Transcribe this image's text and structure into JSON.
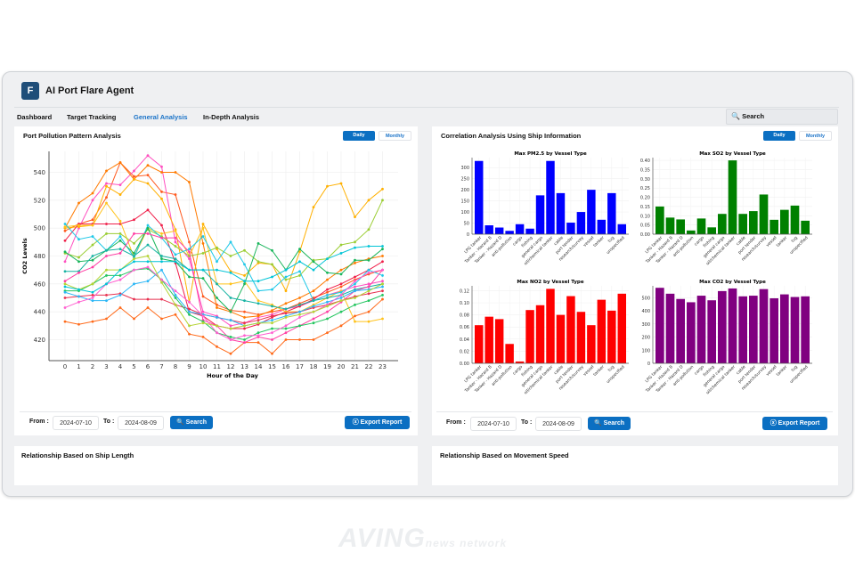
{
  "app": {
    "logo_letter": "F",
    "title": "AI Port Flare Agent"
  },
  "nav": [
    {
      "label": "Dashboard",
      "active": false
    },
    {
      "label": "Target Tracking",
      "active": false
    },
    {
      "label": "General Analysis",
      "active": true
    },
    {
      "label": "In-Depth Analysis",
      "active": false
    }
  ],
  "search": {
    "label": "Search",
    "icon": "search-icon"
  },
  "left_panel": {
    "title": "Port Pollution Pattern Analysis",
    "toggle": {
      "daily": "Daily",
      "monthly": "Monthly",
      "selected": "Daily"
    },
    "from_label": "From :",
    "from_value": "2024-07-10",
    "to_label": "To :",
    "to_value": "2024-08-09",
    "search_label": "Search",
    "export_label": "Export Report"
  },
  "right_panel": {
    "title": "Correlation Analysis Using Ship Information",
    "toggle": {
      "daily": "Daily",
      "monthly": "Monthly",
      "selected": "Daily"
    },
    "from_label": "From :",
    "from_value": "2024-07-10",
    "to_label": "To :",
    "to_value": "2024-08-09",
    "search_label": "Search",
    "export_label": "Export Report"
  },
  "bottom_left": {
    "title": "Relationship Based on Ship Length"
  },
  "bottom_right": {
    "title": "Relationship Based on Movement Speed"
  },
  "watermark": {
    "text": "AVING",
    "sub": "news network"
  },
  "colors": {
    "accent": "#0b6fc2",
    "logo": "#1f4e79",
    "pm25": "#0000ff",
    "so2": "#008000",
    "no2": "#ff0000",
    "co2": "#800080"
  },
  "chart_data": [
    {
      "type": "line",
      "title": "",
      "xlabel": "Hour of the Day",
      "ylabel": "CO2 Levels",
      "x": [
        0,
        1,
        2,
        3,
        4,
        5,
        6,
        7,
        8,
        9,
        10,
        11,
        12,
        13,
        14,
        15,
        16,
        17,
        18,
        19,
        20,
        21,
        22,
        23
      ],
      "yticks": [
        420,
        440,
        460,
        480,
        500,
        520,
        540
      ],
      "ylim": [
        405,
        555
      ],
      "grid": true,
      "markers": true,
      "series": [
        {
          "color": "#ff5a1f",
          "values": [
            498,
            503,
            506,
            522,
            547,
            537,
            538,
            526,
            524,
            490,
            451,
            445,
            441,
            440,
            438,
            440,
            442,
            446,
            450,
            454,
            458,
            463,
            467,
            470
          ]
        },
        {
          "color": "#ff4fc0",
          "values": [
            476,
            500,
            520,
            532,
            531,
            541,
            552,
            544,
            490,
            478,
            440,
            437,
            430,
            432,
            436,
            438,
            442,
            444,
            448,
            452,
            455,
            458,
            460,
            462
          ]
        },
        {
          "color": "#ff7a00",
          "values": [
            500,
            518,
            525,
            541,
            547,
            535,
            545,
            540,
            540,
            533,
            489,
            443,
            440,
            436,
            437,
            441,
            446,
            450,
            455,
            463,
            470,
            475,
            478,
            480
          ]
        },
        {
          "color": "#ffb000",
          "values": [
            500,
            501,
            502,
            530,
            524,
            535,
            532,
            521,
            499,
            447,
            503,
            485,
            469,
            466,
            475,
            474,
            455,
            483,
            515,
            530,
            532,
            508,
            520,
            528
          ]
        },
        {
          "color": "#f0204a",
          "values": [
            491,
            503,
            503,
            503,
            503,
            506,
            513,
            502,
            475,
            440,
            437,
            430,
            428,
            428,
            431,
            436,
            440,
            444,
            449,
            456,
            460,
            465,
            470,
            476
          ]
        },
        {
          "color": "#ffc21a",
          "values": [
            501,
            502,
            502,
            518,
            505,
            479,
            500,
            496,
            498,
            480,
            500,
            460,
            460,
            462,
            448,
            445,
            440,
            440,
            445,
            450,
            455,
            433,
            433,
            435
          ]
        },
        {
          "color": "#9acd32",
          "values": [
            482,
            479,
            488,
            496,
            496,
            489,
            499,
            494,
            487,
            480,
            482,
            486,
            480,
            484,
            476,
            474,
            463,
            466,
            477,
            478,
            488,
            490,
            499,
            520
          ]
        },
        {
          "color": "#1ec8e8",
          "values": [
            503,
            492,
            494,
            484,
            494,
            479,
            502,
            493,
            481,
            485,
            494,
            476,
            490,
            474,
            455,
            456,
            465,
            469,
            448,
            452,
            454,
            460,
            470,
            466
          ]
        },
        {
          "color": "#18b55a",
          "values": [
            483,
            476,
            477,
            484,
            491,
            482,
            500,
            478,
            476,
            465,
            464,
            450,
            440,
            460,
            489,
            484,
            470,
            485,
            476,
            468,
            467,
            477,
            477,
            485
          ]
        },
        {
          "color": "#ff6a1a",
          "values": [
            433,
            431,
            433,
            435,
            443,
            435,
            443,
            435,
            438,
            424,
            422,
            415,
            410,
            418,
            418,
            410,
            420,
            420,
            420,
            425,
            430,
            437,
            440,
            449
          ]
        },
        {
          "color": "#e8304f",
          "values": [
            450,
            451,
            452,
            452,
            453,
            449,
            449,
            449,
            445,
            442,
            438,
            436,
            434,
            432,
            434,
            437,
            439,
            440,
            443,
            445,
            448,
            451,
            453,
            455
          ]
        },
        {
          "color": "#17b3a3",
          "values": [
            469,
            469,
            480,
            484,
            485,
            480,
            488,
            480,
            478,
            470,
            470,
            460,
            450,
            448,
            446,
            444,
            442,
            445,
            448,
            450,
            452,
            456,
            458,
            460
          ]
        },
        {
          "color": "#ff3fa4",
          "values": [
            462,
            468,
            472,
            480,
            482,
            496,
            496,
            493,
            493,
            483,
            434,
            430,
            420,
            418,
            422,
            420,
            425,
            430,
            435,
            440,
            447,
            455,
            458,
            470
          ]
        },
        {
          "color": "#22c55e",
          "values": [
            455,
            455,
            460,
            466,
            466,
            470,
            471,
            463,
            450,
            438,
            433,
            425,
            422,
            420,
            425,
            428,
            428,
            430,
            432,
            435,
            440,
            445,
            448,
            452
          ]
        },
        {
          "color": "#29b6f6",
          "values": [
            454,
            451,
            448,
            448,
            452,
            460,
            462,
            470,
            452,
            440,
            438,
            436,
            434,
            430,
            432,
            434,
            437,
            440,
            444,
            447,
            450,
            455,
            456,
            458
          ]
        },
        {
          "color": "#ff5fd0",
          "values": [
            443,
            447,
            450,
            460,
            463,
            470,
            472,
            463,
            455,
            447,
            437,
            425,
            420,
            423,
            423,
            425,
            430,
            436,
            440,
            445,
            452,
            462,
            468,
            470
          ]
        },
        {
          "color": "#b5d334",
          "values": [
            460,
            456,
            460,
            470,
            470,
            478,
            480,
            461,
            445,
            430,
            432,
            430,
            428,
            430,
            432,
            432,
            436,
            438,
            440,
            444,
            448,
            450,
            455,
            460
          ]
        },
        {
          "color": "#00c4d6",
          "values": [
            458,
            456,
            454,
            460,
            470,
            476,
            476,
            476,
            476,
            470,
            470,
            470,
            468,
            462,
            462,
            465,
            470,
            476,
            470,
            478,
            482,
            486,
            487,
            487
          ]
        }
      ]
    },
    {
      "type": "bar",
      "title": "Max PM2.5 by Vessel Type",
      "color": "#0000ff",
      "categories": [
        "LPG tanker",
        "Tanker - Hazard B",
        "Tanker - Hazard D",
        "anti-pollution",
        "cargo",
        "fishing",
        "general cargo",
        "oil/chemical tanker",
        "cable",
        "port tender",
        "research/survey",
        "vessel",
        "tanker",
        "tug",
        "unspecified"
      ],
      "values": [
        330,
        40,
        30,
        15,
        45,
        25,
        175,
        330,
        185,
        52,
        100,
        200,
        65,
        185,
        45
      ],
      "ylim": [
        0,
        345
      ],
      "yticks": [
        0,
        50,
        100,
        150,
        200,
        250,
        300
      ],
      "grid": true
    },
    {
      "type": "bar",
      "title": "Max SO2 by Vessel Type",
      "color": "#008000",
      "categories": [
        "LPG tanker",
        "Tanker - Hazard B",
        "Tanker - Hazard D",
        "anti-pollution",
        "cargo",
        "fishing",
        "general cargo",
        "oil/chemical tanker",
        "cable",
        "port tender",
        "research/survey",
        "vessel",
        "tanker",
        "tug",
        "unspecified"
      ],
      "values": [
        0.15,
        0.09,
        0.08,
        0.02,
        0.085,
        0.037,
        0.11,
        0.4,
        0.11,
        0.125,
        0.215,
        0.078,
        0.132,
        0.155,
        0.073
      ],
      "ylim": [
        0,
        0.415
      ],
      "yticks": [
        "0.00",
        "0.05",
        "0.10",
        "0.15",
        "0.20",
        "0.25",
        "0.30",
        "0.35",
        "0.40"
      ],
      "grid": true
    },
    {
      "type": "bar",
      "title": "Max NO2 by Vessel Type",
      "color": "#ff0000",
      "categories": [
        "LPG tanker",
        "Tanker - Hazard B",
        "Tanker - Hazard D",
        "anti-pollution",
        "cargo",
        "fishing",
        "general cargo",
        "oil/chemical tanker",
        "cable",
        "port tender",
        "research/survey",
        "vessel",
        "tanker",
        "tug",
        "unspecified"
      ],
      "values": [
        0.063,
        0.077,
        0.073,
        0.032,
        0.003,
        0.088,
        0.096,
        0.123,
        0.08,
        0.111,
        0.085,
        0.063,
        0.105,
        0.087,
        0.115
      ],
      "ylim": [
        0,
        0.128
      ],
      "yticks": [
        "0.00",
        "0.02",
        "0.04",
        "0.06",
        "0.08",
        "0.10",
        "0.12"
      ],
      "grid": true
    },
    {
      "type": "bar",
      "title": "Max CO2 by Vessel Type",
      "color": "#800080",
      "categories": [
        "LPG tanker",
        "Tanker - Hazard B",
        "Tanker - Hazard D",
        "anti-pollution",
        "cargo",
        "fishing",
        "general cargo",
        "oil/chemical tanker",
        "cable",
        "port tender",
        "research/survey",
        "vessel",
        "tanker",
        "tug",
        "unspecified"
      ],
      "values": [
        575,
        530,
        490,
        465,
        515,
        480,
        550,
        570,
        510,
        515,
        565,
        495,
        525,
        505,
        510
      ],
      "ylim": [
        0,
        590
      ],
      "yticks": [
        0,
        100,
        200,
        300,
        400,
        500
      ],
      "grid": true
    }
  ]
}
